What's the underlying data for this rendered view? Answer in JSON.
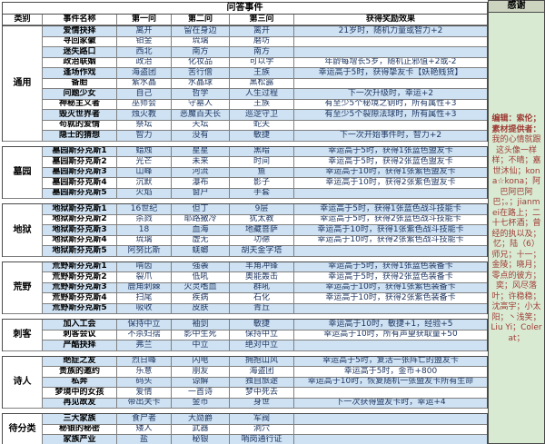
{
  "title": "问答事件",
  "columns": [
    "类别",
    "事件名称",
    "第一问",
    "第二问",
    "第三问",
    "获得奖励效果"
  ],
  "thanks": {
    "header": "感谢",
    "editor": "编辑：索伦；",
    "providers_label": "素材提供者：",
    "providers": "我的心情就跟这头像一样样；不晴；嘉世沐仙；kona☆kona；阿巴阿巴阿巴；。；jianmei在路上；二十七杯酒；曾经的执以及；忆；陆（6）师兄；十一；金陵；晓月；零点的彼方；奕；风尽落叶；许稳稳；沈高宇；小太阳；丶浅笑；Liu Yi；Colerat；"
  },
  "colors": {
    "row_blue": "#cfe2f3",
    "row_white": "#ffffff",
    "sidebar_green": "#d9ead3",
    "credits_red": "#9e3a33",
    "answer_text": "#1f3864"
  },
  "sections": [
    {
      "category": "通用",
      "rows": [
        {
          "name": "爱情抉择",
          "a1": "离开",
          "a2": "留在身边",
          "a3": "离开",
          "reward": "21岁时，随机力量或智力+2"
        },
        {
          "name": "寻回家徽",
          "a1": "铂金",
          "a2": "琉璃",
          "a3": "磨坊",
          "reward": ""
        },
        {
          "name": "迷失路口",
          "a1": "西北",
          "a2": "南方",
          "a3": "南方",
          "reward": ""
        },
        {
          "name": "政治联姻",
          "a1": "政治",
          "a2": "化妆品",
          "a3": "可以学",
          "reward": "年龄每增长5岁，随机正邪值+2或-2"
        },
        {
          "name": "逢场作戏",
          "a1": "海盗团",
          "a2": "苦行僧",
          "a3": "王族",
          "reward": "幸运高于5时，获得挚友卡【妖艳贱货】"
        },
        {
          "name": "备胎",
          "a1": "紫水晶",
          "a2": "水晶球",
          "a3": "黑松露",
          "reward": ""
        },
        {
          "name": "问题少女",
          "a1": "自己",
          "a2": "哲学",
          "a3": "人生过程",
          "reward": "下一次升级时，幸运+2"
        },
        {
          "name": "神秘主义者",
          "a1": "巫师会",
          "a2": "守墓人",
          "a3": "王族",
          "reward": "有至少5个秘境之钥时，所有属性+3"
        },
        {
          "name": "毁灭世界者",
          "a1": "烛火教",
          "a2": "恶魔百夫长",
          "a3": "巡逻守卫",
          "reward": "有至少5个裂隙法球时，所有属性+3"
        },
        {
          "name": "苟就的爱情",
          "a1": "祭坛",
          "a2": "天坛",
          "a3": "蛇夫",
          "reward": ""
        },
        {
          "name": "隐士的猜想",
          "a1": "智力",
          "a2": "没有",
          "a3": "敏捷",
          "reward": "下一次开始事件时，智力+2"
        }
      ]
    },
    {
      "category": "墓园",
      "rows": [
        {
          "name": "墓园斯芬克斯1",
          "a1": "蜡烛",
          "a2": "星星",
          "a3": "黑暗",
          "reward": "幸运高于5时，获得1张蓝色盟友卡"
        },
        {
          "name": "墓园斯芬克斯2",
          "a1": "光芒",
          "a2": "未来",
          "a3": "时间",
          "reward": "幸运高于5时，获得2张蓝色盟友卡"
        },
        {
          "name": "墓园斯芬克斯3",
          "a1": "山峰",
          "a2": "河流",
          "a3": "鱼",
          "reward": "幸运高于10时，获得1张紫色盟友卡"
        },
        {
          "name": "墓园斯芬克斯4",
          "a1": "沉默",
          "a2": "瀑布",
          "a3": "影子",
          "reward": "幸运高于10时，获得2张紫色盟友卡"
        },
        {
          "name": "墓园斯芬克斯5",
          "a1": "火焰",
          "a2": "窗户",
          "a3": "手套",
          "reward": ""
        }
      ]
    },
    {
      "category": "地狱",
      "rows": [
        {
          "name": "地狱斯芬克斯1",
          "a1": "16世纪",
          "a2": "但丁",
          "a3": "9层",
          "reward": "幸运高于5时，获得1张蓝色战斗技能卡"
        },
        {
          "name": "地狱斯芬克斯2",
          "a1": "杀戮",
          "a2": "耶路撒冷",
          "a3": "犹太教",
          "reward": "幸运高于5时，获得2张蓝色战斗技能卡"
        },
        {
          "name": "地狱斯芬克斯3",
          "a1": "18",
          "a2": "血海",
          "a3": "地藏菩萨",
          "reward": "幸运高于10时，获得1张紫色战斗技能卡"
        },
        {
          "name": "地狱斯芬克斯4",
          "a1": "琉璃",
          "a2": "虚无",
          "a3": "功德",
          "reward": "幸运高于10时，获得2张紫色战斗技能卡"
        },
        {
          "name": "地狱斯芬克斯5",
          "a1": "阿努比斯",
          "a2": "蜣螂",
          "a3": "胡夫金字塔",
          "reward": ""
        }
      ]
    },
    {
      "category": "荒野",
      "rows": [
        {
          "name": "荒野斯芬克斯1",
          "a1": "啃齿",
          "a2": "强袭",
          "a3": "羊角冲锋",
          "reward": "幸运高于5时，获得1张蓝色装备卡"
        },
        {
          "name": "荒野斯芬克斯2",
          "a1": "裂爪",
          "a2": "低吼",
          "a3": "奥能轰击",
          "reward": "幸运高于5时，获得2张蓝色装备卡"
        },
        {
          "name": "荒野斯芬克斯3",
          "a1": "鹿角刺棘",
          "a2": "火灵嗜血",
          "a3": "群吼",
          "reward": "幸运高于10时，获得1张紫色装备卡"
        },
        {
          "name": "荒野斯芬克斯4",
          "a1": "扫尾",
          "a2": "疾病",
          "a3": "石化",
          "reward": "幸运高于10时，获得2张紫色装备卡"
        },
        {
          "name": "荒野斯芬克斯5",
          "a1": "吸收",
          "a2": "皮肤",
          "a3": "青丘",
          "reward": ""
        }
      ]
    },
    {
      "category": "刺客",
      "rows": [
        {
          "name": "加入工会",
          "a1": "保持中立",
          "a2": "袖剑",
          "a3": "敏捷",
          "reward": "幸运高于10时，敏捷+1，经验+5"
        },
        {
          "name": "刺客会议",
          "a1": "不杀妇孺",
          "a2": "影中生死",
          "a3": "保持中立",
          "reward": "幸运高于10时，所有声望获取量+50"
        },
        {
          "name": "严酷抉择",
          "a1": "弗兰",
          "a2": "中立",
          "a3": "绝对中立",
          "reward": ""
        }
      ]
    },
    {
      "category": "诗人",
      "rows": [
        {
          "name": "绝症之友",
          "a1": "烈日峰",
          "a2": "闪电",
          "a3": "拥抱山风",
          "reward": "幸运高于5时，复活一张阵亡的盟友卡"
        },
        {
          "name": "贵族的邀约",
          "a1": "乐意",
          "a2": "朋友",
          "a3": "海盗团",
          "reward": "幸运高于5时，金币+800"
        },
        {
          "name": "私奔",
          "a1": "码头",
          "a2": "谅解",
          "a3": "独自旅途",
          "reward": "幸运高于10时，恢复随机一张盟友卡所有生命"
        },
        {
          "name": "梦境中的女孩",
          "a1": "爱情",
          "a2": "一首诗",
          "a3": "梦中死去",
          "reward": ""
        },
        {
          "name": "再见故友",
          "a1": "带出关卡",
          "a2": "金币",
          "a3": "身世",
          "reward": "下一次获得盟友卡时，幸运+4"
        }
      ]
    },
    {
      "category": "待分类",
      "rows": [
        {
          "name": "三大家族",
          "a1": "食尸者",
          "a2": "大勋爵",
          "a3": "军阀",
          "reward": ""
        },
        {
          "name": "秘银的秘密",
          "a1": "矮人",
          "a2": "武器",
          "a3": "洞穴",
          "reward": ""
        },
        {
          "name": "家族产业",
          "a1": "盐",
          "a2": "秘银",
          "a3": "哨岗通行证",
          "reward": ""
        }
      ]
    }
  ]
}
